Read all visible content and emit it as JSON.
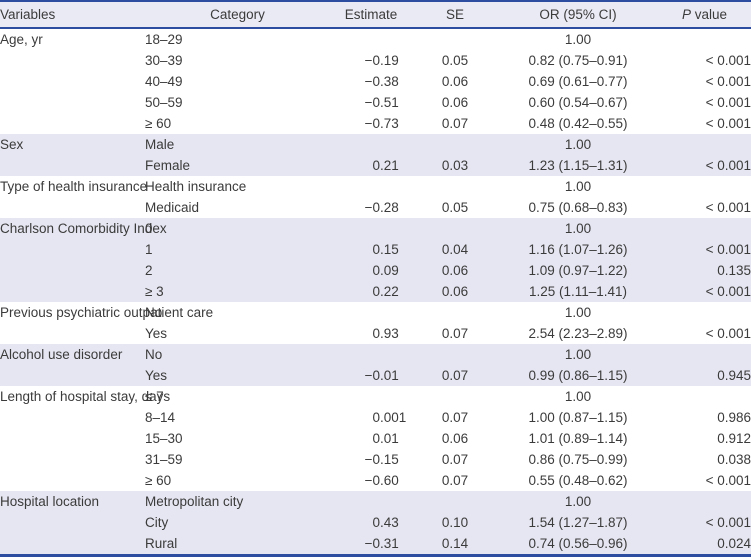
{
  "header": {
    "variables": "Variables",
    "category": "Category",
    "estimate": "Estimate",
    "se": "SE",
    "or": "OR (95% CI)",
    "p_italic": "P",
    "p_rest": " value"
  },
  "colors": {
    "accent_blue": "#2c4da0",
    "band_lavender": "#e6e6f2",
    "header_bg": "#eaeaf5",
    "text": "#3b3b3b"
  },
  "chart_data": {
    "type": "table",
    "columns": [
      "Variables",
      "Category",
      "Estimate",
      "SE",
      "OR (95% CI)",
      "P value"
    ],
    "groups": [
      {
        "variable": "Age, yr",
        "rows": [
          {
            "category": "18–29",
            "estimate": "",
            "se": "",
            "or": "1.00",
            "p": ""
          },
          {
            "category": "30–39",
            "estimate": "−0.19",
            "se": "0.05",
            "or": "0.82 (0.75–0.91)",
            "p": "< 0.001"
          },
          {
            "category": "40–49",
            "estimate": "−0.38",
            "se": "0.06",
            "or": "0.69 (0.61–0.77)",
            "p": "< 0.001"
          },
          {
            "category": "50–59",
            "estimate": "−0.51",
            "se": "0.06",
            "or": "0.60 (0.54–0.67)",
            "p": "< 0.001"
          },
          {
            "category": "≥ 60",
            "estimate": "−0.73",
            "se": "0.07",
            "or": "0.48 (0.42–0.55)",
            "p": "< 0.001"
          }
        ]
      },
      {
        "variable": "Sex",
        "rows": [
          {
            "category": "Male",
            "estimate": "",
            "se": "",
            "or": "1.00",
            "p": ""
          },
          {
            "category": "Female",
            "estimate": "0.21",
            "se": "0.03",
            "or": "1.23 (1.15–1.31)",
            "p": "< 0.001"
          }
        ]
      },
      {
        "variable": "Type of health insurance",
        "rows": [
          {
            "category": "Health insurance",
            "estimate": "",
            "se": "",
            "or": "1.00",
            "p": ""
          },
          {
            "category": "Medicaid",
            "estimate": "−0.28",
            "se": "0.05",
            "or": "0.75 (0.68–0.83)",
            "p": "< 0.001"
          }
        ]
      },
      {
        "variable": "Charlson Comorbidity Index",
        "rows": [
          {
            "category": "0",
            "estimate": "",
            "se": "",
            "or": "1.00",
            "p": ""
          },
          {
            "category": "1",
            "estimate": "0.15",
            "se": "0.04",
            "or": "1.16 (1.07–1.26)",
            "p": "< 0.001"
          },
          {
            "category": "2",
            "estimate": "0.09",
            "se": "0.06",
            "or": "1.09 (0.97–1.22)",
            "p": "0.135"
          },
          {
            "category": "≥ 3",
            "estimate": "0.22",
            "se": "0.06",
            "or": "1.25 (1.11–1.41)",
            "p": "< 0.001"
          }
        ]
      },
      {
        "variable": "Previous psychiatric outpatient care",
        "rows": [
          {
            "category": "No",
            "estimate": "",
            "se": "",
            "or": "1.00",
            "p": ""
          },
          {
            "category": "Yes",
            "estimate": "0.93",
            "se": "0.07",
            "or": "2.54 (2.23–2.89)",
            "p": "< 0.001"
          }
        ]
      },
      {
        "variable": "Alcohol use disorder",
        "rows": [
          {
            "category": "No",
            "estimate": "",
            "se": "",
            "or": "1.00",
            "p": ""
          },
          {
            "category": "Yes",
            "estimate": "−0.01",
            "se": "0.07",
            "or": "0.99 (0.86–1.15)",
            "p": "0.945"
          }
        ]
      },
      {
        "variable": "Length of hospital stay, days",
        "rows": [
          {
            "category": "≤ 7",
            "estimate": "",
            "se": "",
            "or": "1.00",
            "p": ""
          },
          {
            "category": "8–14",
            "estimate": "0.001",
            "se": "0.07",
            "or": "1.00 (0.87–1.15)",
            "p": "0.986"
          },
          {
            "category": "15–30",
            "estimate": "0.01",
            "se": "0.06",
            "or": "1.01 (0.89–1.14)",
            "p": "0.912"
          },
          {
            "category": "31–59",
            "estimate": "−0.15",
            "se": "0.07",
            "or": "0.86 (0.75–0.99)",
            "p": "0.038"
          },
          {
            "category": "≥ 60",
            "estimate": "−0.60",
            "se": "0.07",
            "or": "0.55 (0.48–0.62)",
            "p": "< 0.001"
          }
        ]
      },
      {
        "variable": "Hospital location",
        "rows": [
          {
            "category": "Metropolitan city",
            "estimate": "",
            "se": "",
            "or": "1.00",
            "p": ""
          },
          {
            "category": "City",
            "estimate": "0.43",
            "se": "0.10",
            "or": "1.54 (1.27–1.87)",
            "p": "< 0.001"
          },
          {
            "category": "Rural",
            "estimate": "−0.31",
            "se": "0.14",
            "or": "0.74 (0.56–0.96)",
            "p": "0.024"
          }
        ]
      }
    ]
  }
}
